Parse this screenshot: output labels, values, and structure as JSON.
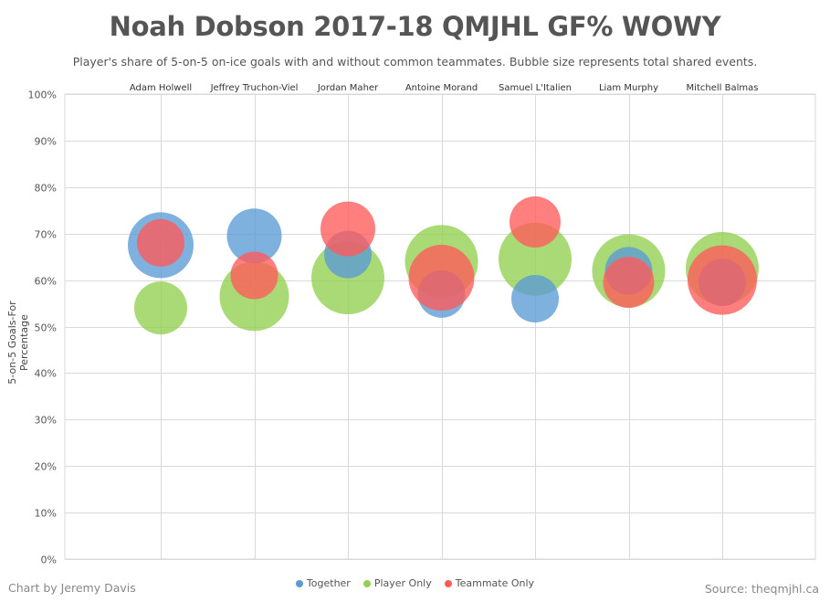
{
  "title": "Noah Dobson 2017-18 QMJHL GF% WOWY",
  "subtitle": "Player's share of 5-on-5 on-ice goals with and without common teammates. Bubble size represents total shared events.",
  "footer": {
    "credit": "Chart by Jeremy Davis",
    "source": "Source: theqmjhl.ca"
  },
  "chart_data": {
    "type": "scatter",
    "title": "Noah Dobson 2017-18 QMJHL GF% WOWY",
    "ylabel": "5-on-5 Goals-For  Percentage",
    "xlabel": "",
    "ylim": [
      0,
      100
    ],
    "yticks": [
      "0%",
      "10%",
      "20%",
      "30%",
      "40%",
      "50%",
      "60%",
      "70%",
      "80%",
      "90%",
      "100%"
    ],
    "grid": true,
    "legend_position": "bottom",
    "categories": [
      "Adam Holwell",
      "Jeffrey Truchon-Viel",
      "Jordan Maher",
      "Antoine Morand",
      "Samuel L'Italien",
      "Liam Murphy",
      "Mitchell Balmas"
    ],
    "series": [
      {
        "name": "Together",
        "color": "#5b9bd5",
        "values": [
          67.5,
          69.5,
          65.5,
          57,
          56,
          62,
          59.5
        ]
      },
      {
        "name": "Player Only",
        "color": "#92d050",
        "values": [
          54,
          56.5,
          60.5,
          64,
          64.5,
          62,
          62.5
        ]
      },
      {
        "name": "Teammate Only",
        "color": "#ff5a5a",
        "values": [
          68,
          61,
          71,
          60.5,
          72.5,
          59.5,
          60
        ]
      }
    ]
  }
}
